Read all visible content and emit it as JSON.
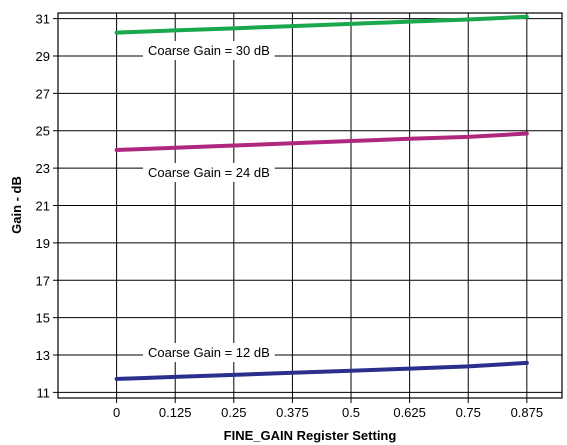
{
  "chart_data": {
    "type": "line",
    "title": "",
    "xlabel": "FINE_GAIN Register Setting",
    "ylabel": "Gain - dB",
    "x": [
      0,
      0.125,
      0.25,
      0.375,
      0.5,
      0.625,
      0.75,
      0.875
    ],
    "x_tick_labels": [
      "0",
      "0.125",
      "0.25",
      "0.375",
      "0.5",
      "0.625",
      "0.75",
      "0.875"
    ],
    "y_ticks": [
      11,
      13,
      15,
      17,
      19,
      21,
      23,
      25,
      27,
      29,
      31
    ],
    "xlim": [
      -0.125,
      0.95
    ],
    "ylim": [
      10.7,
      31.3
    ],
    "grid": true,
    "series": [
      {
        "name": "Coarse Gain = 30 dB",
        "color": "#1aa84c",
        "values": [
          30.25,
          30.37,
          30.48,
          30.6,
          30.72,
          30.84,
          30.95,
          31.1
        ]
      },
      {
        "name": "Coarse Gain = 24 dB",
        "color": "#b0287e",
        "values": [
          23.97,
          24.09,
          24.21,
          24.33,
          24.45,
          24.57,
          24.67,
          24.85
        ]
      },
      {
        "name": "Coarse Gain = 12 dB",
        "color": "#2a2e8c",
        "values": [
          11.72,
          11.83,
          11.94,
          12.05,
          12.16,
          12.27,
          12.39,
          12.58
        ]
      }
    ]
  }
}
